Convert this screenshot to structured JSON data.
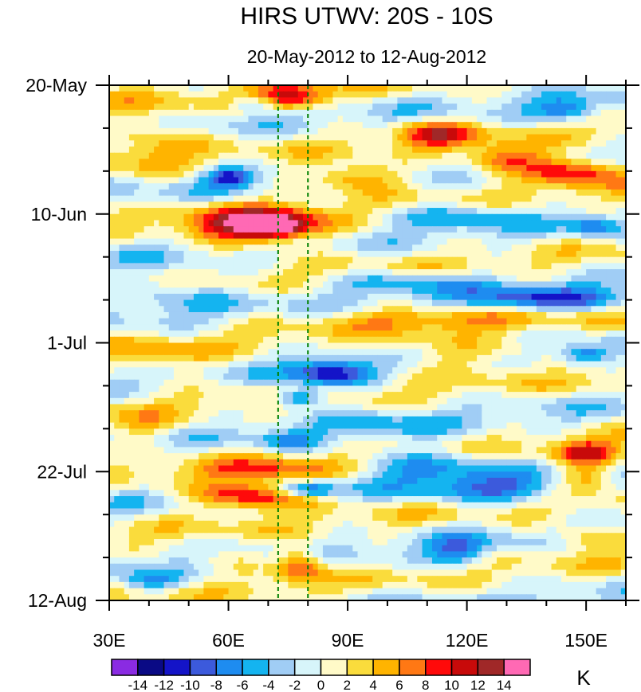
{
  "chart_data": {
    "type": "heatmap",
    "title": "HIRS UTWV: 20S - 10S",
    "subtitle": "20-May-2012 to 12-Aug-2012",
    "xlabel": "",
    "ylabel": "",
    "x_range": [
      30,
      160
    ],
    "y_range_days": [
      0,
      84
    ],
    "x_ticks": [
      {
        "value": 30,
        "label": "30E"
      },
      {
        "value": 60,
        "label": "60E"
      },
      {
        "value": 90,
        "label": "90E"
      },
      {
        "value": 120,
        "label": "120E"
      },
      {
        "value": 150,
        "label": "150E"
      }
    ],
    "y_ticks": [
      {
        "day": 0,
        "label": "20-May"
      },
      {
        "day": 21,
        "label": "10-Jun"
      },
      {
        "day": 42,
        "label": "1-Jul"
      },
      {
        "day": 63,
        "label": "22-Jul"
      },
      {
        "day": 84,
        "label": "12-Aug"
      }
    ],
    "reference_lines_lon": [
      72.5,
      80
    ],
    "colorbar": {
      "unit": "K",
      "levels": [
        -14,
        -12,
        -10,
        -8,
        -6,
        -4,
        -2,
        0,
        2,
        4,
        6,
        8,
        10,
        12,
        14
      ],
      "colors": [
        "#8a2be2",
        "#0a0a85",
        "#1414c8",
        "#3c5adc",
        "#1e8cf0",
        "#14b4f0",
        "#a0cdf5",
        "#d7f5fa",
        "#fffac8",
        "#fadc3c",
        "#ffb400",
        "#ff7814",
        "#ff0a0a",
        "#c80a0a",
        "#a02828",
        "#ff69b4"
      ],
      "labels": [
        "-14",
        "-12",
        "-10",
        "-8",
        "-6",
        "-4",
        "-2",
        "0",
        "2",
        "4",
        "6",
        "8",
        "10",
        "12",
        "14"
      ]
    },
    "anomaly_features": [
      {
        "lon": 68,
        "day": 23,
        "dlon": 16,
        "dday": 3.0,
        "value": 16
      },
      {
        "lon": 72,
        "day": 23,
        "dlon": 6,
        "dday": 1.4,
        "value": 6
      },
      {
        "lon": 76,
        "day": 2,
        "dlon": 9,
        "dday": 2.0,
        "value": 11
      },
      {
        "lon": 112,
        "day": 8,
        "dlon": 9,
        "dday": 2.2,
        "value": 9
      },
      {
        "lon": 130,
        "day": 12,
        "dlon": 10,
        "dday": 2.4,
        "value": 10
      },
      {
        "lon": 148,
        "day": 14,
        "dlon": 12,
        "dday": 2.4,
        "value": 11
      },
      {
        "lon": 92,
        "day": 15,
        "dlon": 12,
        "dday": 2.2,
        "value": 9
      },
      {
        "lon": 40,
        "day": 8,
        "dlon": 12,
        "dday": 5.0,
        "value": 5
      },
      {
        "lon": 60,
        "day": 15,
        "dlon": 6,
        "dday": 1.6,
        "value": -10
      },
      {
        "lon": 66,
        "day": 3,
        "dlon": 5,
        "dday": 1.2,
        "value": -6
      },
      {
        "lon": 145,
        "day": 4,
        "dlon": 8,
        "dday": 1.8,
        "value": -7
      },
      {
        "lon": 118,
        "day": 21,
        "dlon": 18,
        "dday": 2.0,
        "value": -5
      },
      {
        "lon": 152,
        "day": 23,
        "dlon": 6,
        "dday": 1.6,
        "value": -6
      },
      {
        "lon": 140,
        "day": 35,
        "dlon": 20,
        "dday": 2.0,
        "value": -9
      },
      {
        "lon": 105,
        "day": 32,
        "dlon": 18,
        "dday": 1.8,
        "value": -5
      },
      {
        "lon": 45,
        "day": 33,
        "dlon": 16,
        "dday": 3.5,
        "value": -4
      },
      {
        "lon": 110,
        "day": 38,
        "dlon": 30,
        "dday": 2.0,
        "value": 5
      },
      {
        "lon": 120,
        "day": 44,
        "dlon": 22,
        "dday": 2.5,
        "value": 5
      },
      {
        "lon": 45,
        "day": 45,
        "dlon": 14,
        "dday": 3.0,
        "value": 4
      },
      {
        "lon": 86,
        "day": 47,
        "dlon": 10,
        "dday": 2.2,
        "value": -11
      },
      {
        "lon": 78,
        "day": 51,
        "dlon": 6,
        "dday": 1.5,
        "value": -10
      },
      {
        "lon": 150,
        "day": 44,
        "dlon": 6,
        "dday": 1.6,
        "value": -8
      },
      {
        "lon": 75,
        "day": 58,
        "dlon": 7,
        "dday": 1.6,
        "value": -6
      },
      {
        "lon": 70,
        "day": 63,
        "dlon": 18,
        "dday": 2.0,
        "value": 7
      },
      {
        "lon": 80,
        "day": 66,
        "dlon": 7,
        "dday": 1.3,
        "value": -9
      },
      {
        "lon": 66,
        "day": 67,
        "dlon": 15,
        "dday": 2.2,
        "value": 12
      },
      {
        "lon": 110,
        "day": 62,
        "dlon": 18,
        "dday": 3.0,
        "value": -6
      },
      {
        "lon": 128,
        "day": 66,
        "dlon": 18,
        "dday": 2.2,
        "value": -7
      },
      {
        "lon": 150,
        "day": 60,
        "dlon": 8,
        "dday": 2.0,
        "value": 10
      },
      {
        "lon": 150,
        "day": 64,
        "dlon": 8,
        "dday": 2.0,
        "value": 7
      },
      {
        "lon": 118,
        "day": 76,
        "dlon": 8,
        "dday": 2.5,
        "value": -7
      },
      {
        "lon": 78,
        "day": 78,
        "dlon": 6,
        "dday": 3.0,
        "value": 9
      },
      {
        "lon": 60,
        "day": 77,
        "dlon": 10,
        "dday": 2.0,
        "value": 3
      },
      {
        "lon": 40,
        "day": 81,
        "dlon": 8,
        "dday": 1.6,
        "value": -6
      },
      {
        "lon": 150,
        "day": 74,
        "dlon": 10,
        "dday": 2.0,
        "value": 6
      },
      {
        "lon": 100,
        "day": 56,
        "dlon": 14,
        "dday": 2.5,
        "value": -3
      },
      {
        "lon": 38,
        "day": 56,
        "dlon": 10,
        "dday": 3.0,
        "value": 4
      }
    ]
  }
}
